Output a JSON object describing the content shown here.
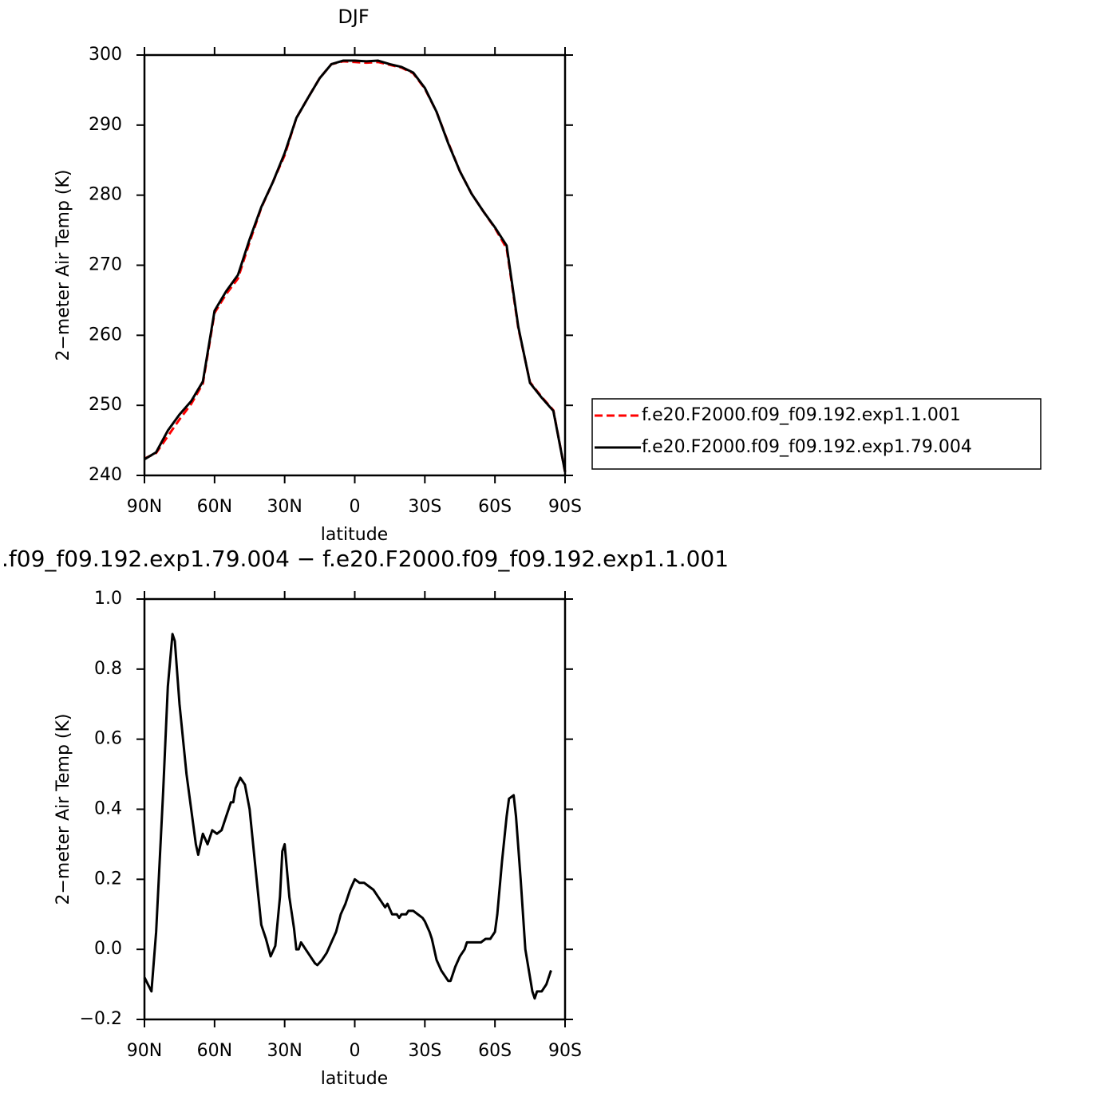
{
  "chart_data": [
    {
      "type": "line",
      "title": "DJF",
      "xlabel": "latitude",
      "ylabel": "2−meter Air Temp (K)",
      "x": [
        90,
        85,
        80,
        75,
        70,
        65,
        60,
        55,
        50,
        45,
        40,
        35,
        30,
        25,
        20,
        15,
        10,
        5,
        0,
        -5,
        -10,
        -15,
        -20,
        -25,
        -30,
        -35,
        -40,
        -45,
        -50,
        -55,
        -60,
        -65,
        -70,
        -75,
        -80,
        -85,
        -90
      ],
      "series": [
        {
          "name": "f.e20.F2000.f09_f09.192.exp1.1.001",
          "color": "#ff0000",
          "line_style": "dashed",
          "values": [
            242.4,
            243.2,
            245.6,
            248.0,
            250.2,
            253.1,
            263.2,
            265.9,
            268.1,
            273.3,
            278.2,
            281.9,
            285.7,
            291.0,
            293.9,
            296.7,
            298.7,
            299.1,
            299.0,
            298.9,
            299.0,
            298.6,
            298.2,
            297.4,
            295.2,
            291.9,
            287.5,
            283.4,
            280.2,
            277.7,
            275.3,
            272.4,
            261.0,
            253.3,
            251.2,
            249.3,
            240.5
          ]
        },
        {
          "name": "f.e20.F2000.f09_f09.192.exp1.79.004",
          "color": "#000000",
          "line_style": "solid",
          "values": [
            242.3,
            243.3,
            246.4,
            248.7,
            250.6,
            253.4,
            263.5,
            266.3,
            268.6,
            273.7,
            278.3,
            281.9,
            286.0,
            291.0,
            293.9,
            296.7,
            298.7,
            299.2,
            299.2,
            299.1,
            299.2,
            298.7,
            298.3,
            297.5,
            295.3,
            291.9,
            287.4,
            283.4,
            280.2,
            277.7,
            275.4,
            272.8,
            261.2,
            253.2,
            251.1,
            249.2,
            240.5
          ]
        }
      ],
      "xlim": [
        90,
        -90
      ],
      "xticks": [
        {
          "value": 90,
          "label": "90N"
        },
        {
          "value": 60,
          "label": "60N"
        },
        {
          "value": 30,
          "label": "30N"
        },
        0,
        {
          "value": -30,
          "label": "30S"
        },
        {
          "value": -60,
          "label": "60S"
        },
        {
          "value": -90,
          "label": "90S"
        }
      ],
      "ylim": [
        240,
        300
      ],
      "yticks": [
        240,
        250,
        260,
        270,
        280,
        290,
        300
      ],
      "legend": "right"
    },
    {
      "type": "line",
      "title": ".f09_f09.192.exp1.79.004 − f.e20.F2000.f09_f09.192.exp1.1.001",
      "xlabel": "latitude",
      "ylabel": "2−meter Air Temp (K)",
      "x": [
        90,
        87,
        85,
        82,
        80,
        78,
        77,
        75,
        72,
        70,
        68,
        67,
        65,
        63,
        61,
        59,
        57,
        55,
        53,
        52,
        51,
        49,
        47,
        45,
        42,
        40,
        38,
        36,
        34,
        32,
        31,
        30,
        28,
        26,
        25,
        24,
        23,
        21,
        19,
        17,
        16,
        14,
        12,
        10,
        8,
        6,
        4,
        2,
        0,
        -2,
        -4,
        -6,
        -8,
        -10,
        -12,
        -13,
        -14,
        -16,
        -18,
        -19,
        -20,
        -22,
        -23,
        -25,
        -27,
        -29,
        -30,
        -32,
        -33,
        -35,
        -37,
        -39,
        -40,
        -41,
        -43,
        -45,
        -47,
        -48,
        -50,
        -52,
        -54,
        -56,
        -58,
        -60,
        -61,
        -63,
        -65,
        -66,
        -68,
        -69,
        -71,
        -73,
        -75,
        -76,
        -77,
        -78,
        -80,
        -82,
        -84
      ],
      "series": [
        {
          "color": "#000000",
          "line_style": "solid",
          "values": [
            -0.08,
            -0.12,
            0.05,
            0.45,
            0.75,
            0.9,
            0.88,
            0.7,
            0.5,
            0.4,
            0.3,
            0.27,
            0.33,
            0.3,
            0.34,
            0.33,
            0.34,
            0.38,
            0.42,
            0.42,
            0.46,
            0.49,
            0.47,
            0.4,
            0.2,
            0.07,
            0.03,
            -0.02,
            0.01,
            0.15,
            0.28,
            0.3,
            0.15,
            0.06,
            0.0,
            0.0,
            0.02,
            0.0,
            -0.02,
            -0.04,
            -0.045,
            -0.03,
            -0.01,
            0.02,
            0.05,
            0.1,
            0.13,
            0.17,
            0.2,
            0.19,
            0.19,
            0.18,
            0.17,
            0.15,
            0.13,
            0.12,
            0.13,
            0.1,
            0.1,
            0.09,
            0.1,
            0.1,
            0.11,
            0.11,
            0.1,
            0.09,
            0.08,
            0.05,
            0.03,
            -0.03,
            -0.06,
            -0.08,
            -0.09,
            -0.09,
            -0.05,
            -0.02,
            0.0,
            0.02,
            0.02,
            0.02,
            0.02,
            0.03,
            0.03,
            0.05,
            0.1,
            0.25,
            0.38,
            0.43,
            0.44,
            0.38,
            0.2,
            0.0,
            -0.08,
            -0.12,
            -0.14,
            -0.12,
            -0.12,
            -0.1,
            -0.06
          ]
        }
      ],
      "xlim": [
        90,
        -90
      ],
      "xticks": [
        {
          "value": 90,
          "label": "90N"
        },
        {
          "value": 60,
          "label": "60N"
        },
        {
          "value": 30,
          "label": "30N"
        },
        0,
        {
          "value": -30,
          "label": "30S"
        },
        {
          "value": -60,
          "label": "60S"
        },
        {
          "value": -90,
          "label": "90S"
        }
      ],
      "ylim": [
        -0.2,
        1.0
      ],
      "yticks": [
        {
          "value": -0.2,
          "label": "−0.2"
        },
        {
          "value": 0,
          "label": "0.0"
        },
        0.2,
        0.4,
        0.6,
        0.8,
        {
          "value": 1.0,
          "label": "1.0"
        }
      ]
    }
  ]
}
